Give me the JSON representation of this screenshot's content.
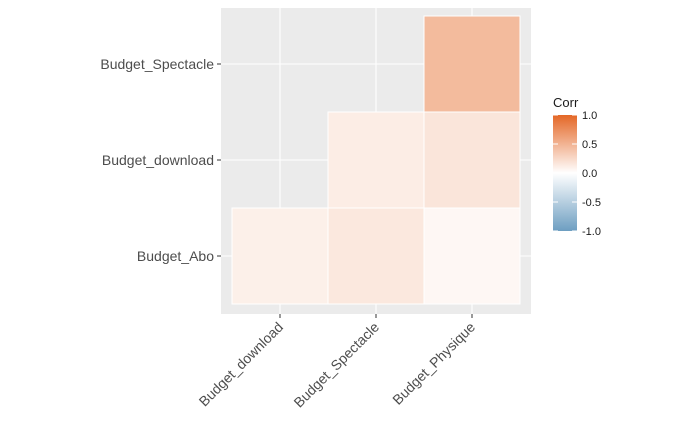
{
  "chart_data": {
    "type": "heatmap",
    "title": "",
    "xlabel": "",
    "ylabel": "",
    "x_categories": [
      "Budget_download",
      "Budget_Spectacle",
      "Budget_Physique"
    ],
    "y_categories": [
      "Budget_Abo",
      "Budget_download",
      "Budget_Spectacle"
    ],
    "cells": [
      {
        "x": "Budget_download",
        "y": "Budget_Abo",
        "value": 0.1
      },
      {
        "x": "Budget_Spectacle",
        "y": "Budget_Abo",
        "value": 0.15
      },
      {
        "x": "Budget_Physique",
        "y": "Budget_Abo",
        "value": 0.05
      },
      {
        "x": "Budget_Spectacle",
        "y": "Budget_download",
        "value": 0.12
      },
      {
        "x": "Budget_Physique",
        "y": "Budget_download",
        "value": 0.17
      },
      {
        "x": "Budget_Physique",
        "y": "Budget_Spectacle",
        "value": 0.45
      }
    ],
    "legend": {
      "title": "Corr",
      "position": "right",
      "ticks": [
        1.0,
        0.5,
        0.0,
        -0.5,
        -1.0
      ],
      "tick_labels": [
        "1.0",
        "0.5",
        "0.0",
        "-0.5",
        "-1.0"
      ],
      "low_color": "#6d9ec1",
      "mid_color": "#ffffff",
      "high_color": "#e46726",
      "range": [
        -1,
        1
      ]
    },
    "grid": true,
    "panel_background": "#ebebeb",
    "grid_color": "#ffffff"
  }
}
